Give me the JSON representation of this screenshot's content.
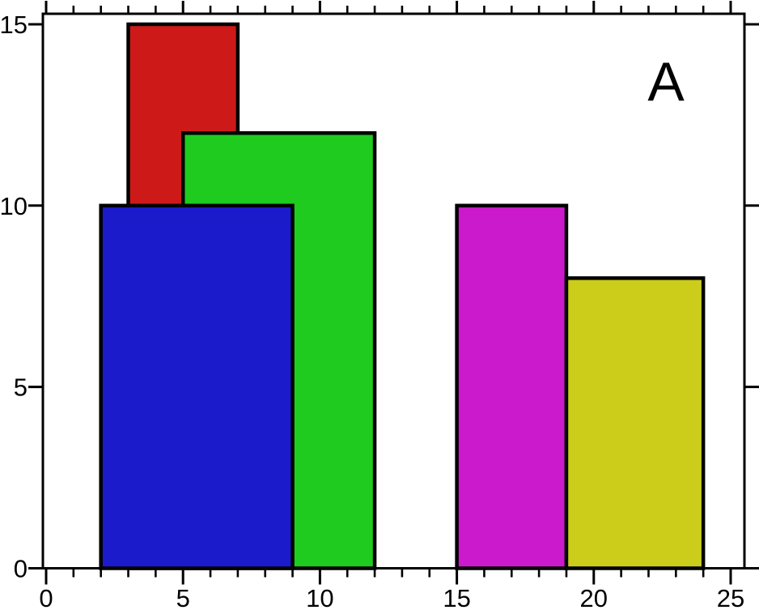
{
  "figure": {
    "background_color": "#ffffff"
  },
  "chart_data": {
    "type": "bar",
    "title": "",
    "xlabel": "",
    "ylabel": "",
    "xlim": [
      0,
      25
    ],
    "ylim": [
      0,
      15
    ],
    "grid": false,
    "legend_position": "none",
    "axis_color": "#000000",
    "bar_outline_color": "#000000",
    "x_major_ticks": [
      0,
      5,
      10,
      15,
      20,
      25
    ],
    "x_tick_labels": [
      "0",
      "5",
      "10",
      "15",
      "20",
      "25"
    ],
    "x_minor_ticks": [
      1,
      2,
      3,
      4,
      6,
      7,
      8,
      9,
      11,
      12,
      13,
      14,
      16,
      17,
      18,
      19,
      21,
      22,
      23,
      24
    ],
    "y_major_ticks": [
      0,
      5,
      10,
      15
    ],
    "y_tick_labels": [
      "0",
      "5",
      "10",
      "15"
    ],
    "annotation": {
      "text": "A",
      "position": "top-right",
      "color": "#000000"
    },
    "bars": [
      {
        "name": "red-bar",
        "color": "#cd1a19",
        "x_start": 3,
        "x_end": 7,
        "height": 15
      },
      {
        "name": "green-bar",
        "color": "#1ecb1e",
        "x_start": 5,
        "x_end": 12,
        "height": 12
      },
      {
        "name": "blue-bar",
        "color": "#1b1bcb",
        "x_start": 2,
        "x_end": 9,
        "height": 10
      },
      {
        "name": "magenta-bar",
        "color": "#cb1acb",
        "x_start": 15,
        "x_end": 19,
        "height": 10
      },
      {
        "name": "yellow-bar",
        "color": "#cccc1a",
        "x_start": 19,
        "x_end": 24,
        "height": 8
      }
    ]
  }
}
